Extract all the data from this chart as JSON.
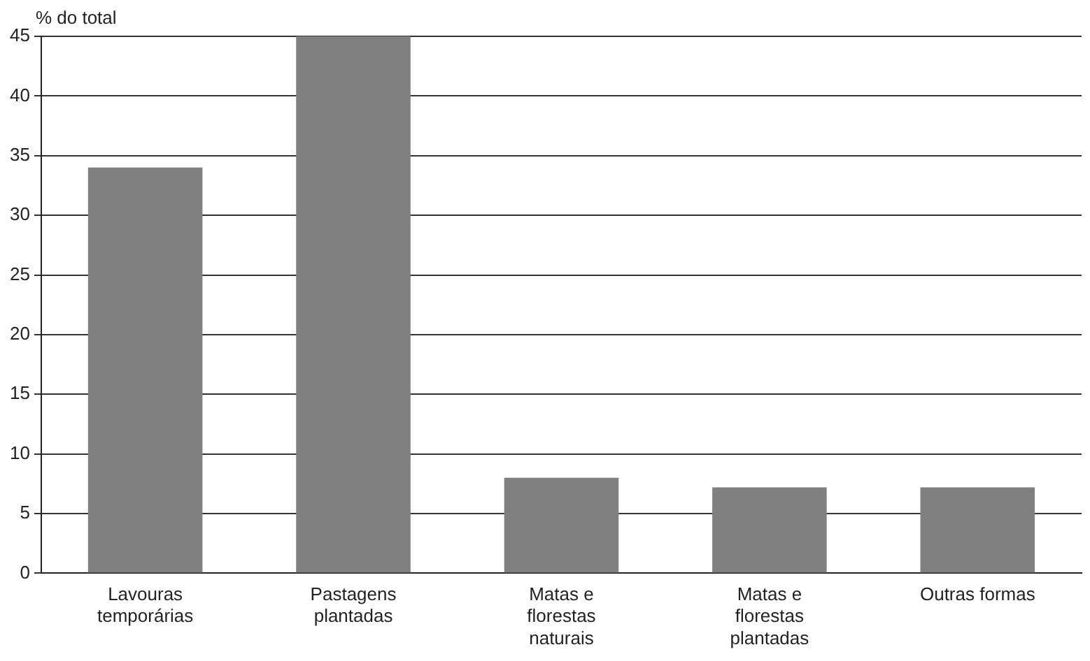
{
  "chart_data": {
    "type": "bar",
    "ylabel": "% do total",
    "categories": [
      "Lavouras\ntemporárias",
      "Pastagens\nplantadas",
      "Matas e\nflorestas\nnaturais",
      "Matas e\nflorestas\nplantadas",
      "Outras formas"
    ],
    "values": [
      34,
      45,
      8,
      7.2,
      7.2
    ],
    "color": "#808080",
    "ylim": [
      0,
      45
    ],
    "yticks": [
      0,
      5,
      10,
      15,
      20,
      25,
      30,
      35,
      40,
      45
    ],
    "grid": "y",
    "legend": false
  }
}
